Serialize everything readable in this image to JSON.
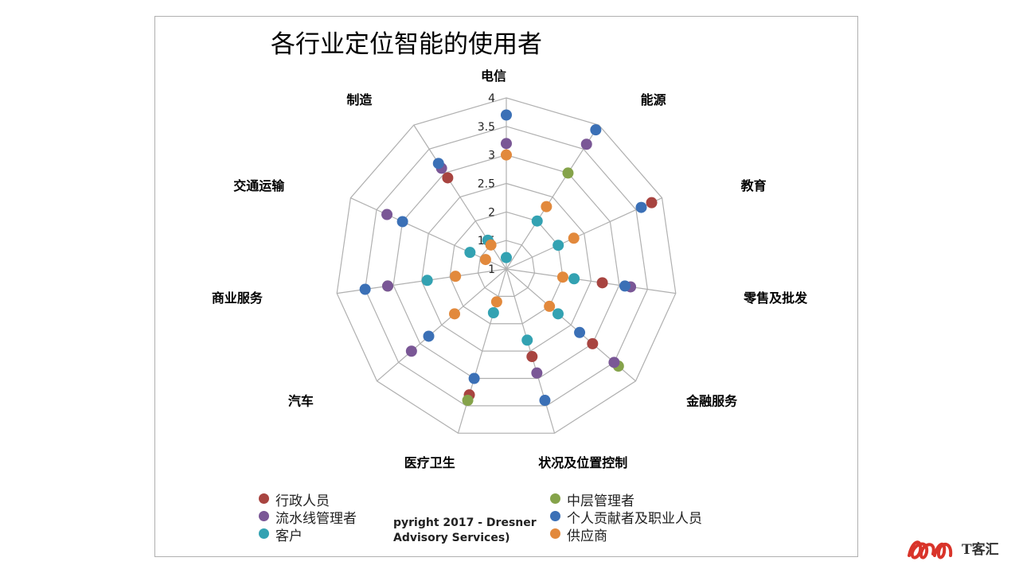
{
  "watermark": {
    "brand": "T客汇"
  },
  "copyright_lines": [
    "pyright 2017 - Dresner",
    "Advisory Services)"
  ],
  "colors": {
    "行政人员": "#a84440",
    "中层管理者": "#85a34a",
    "流水线管理者": "#7a5796",
    "个人贡献者及职业人员": "#3b70b6",
    "客户": "#33a2b2",
    "供应商": "#e2893c",
    "grid": "#b0b0b0"
  },
  "chart_data": {
    "type": "radar",
    "title": "各行业定位智能的使用者",
    "categories": [
      "电信",
      "能源",
      "教育",
      "零售及批发",
      "金融服务",
      "状况及位置控制",
      "医疗卫生",
      "汽车",
      "商业服务",
      "交通运输",
      "制造"
    ],
    "r_ticks": [
      "1",
      "1.5",
      "2",
      "2.5",
      "3",
      "3.5",
      "4"
    ],
    "rlim": [
      1,
      4
    ],
    "series": [
      {
        "name": "行政人员",
        "values": [
          null,
          null,
          3.8,
          2.7,
          3.0,
          2.6,
          3.3,
          null,
          null,
          null,
          2.9
        ]
      },
      {
        "name": "中层管理者",
        "values": [
          null,
          3.0,
          null,
          null,
          3.6,
          null,
          3.4,
          null,
          3.1,
          null,
          null
        ]
      },
      {
        "name": "流水线管理者",
        "values": [
          3.2,
          3.6,
          null,
          3.2,
          3.5,
          2.9,
          null,
          3.2,
          3.1,
          3.3,
          3.1
        ]
      },
      {
        "name": "个人贡献者及职业人员",
        "values": [
          3.7,
          3.9,
          3.6,
          3.1,
          2.7,
          3.4,
          3.0,
          2.8,
          3.5,
          3.0,
          3.2
        ]
      },
      {
        "name": "客户",
        "values": [
          1.2,
          2.0,
          2.0,
          2.2,
          2.2,
          2.3,
          1.8,
          null,
          2.4,
          1.7,
          1.6
        ]
      },
      {
        "name": "供应商",
        "values": [
          3.0,
          2.3,
          2.3,
          2.0,
          2.0,
          null,
          1.6,
          2.2,
          1.9,
          1.4,
          1.5
        ]
      }
    ],
    "legend": {
      "placement": "bottom",
      "items": [
        "行政人员",
        "中层管理者",
        "流水线管理者",
        "个人贡献者及职业人员",
        "客户",
        "供应商"
      ]
    }
  }
}
